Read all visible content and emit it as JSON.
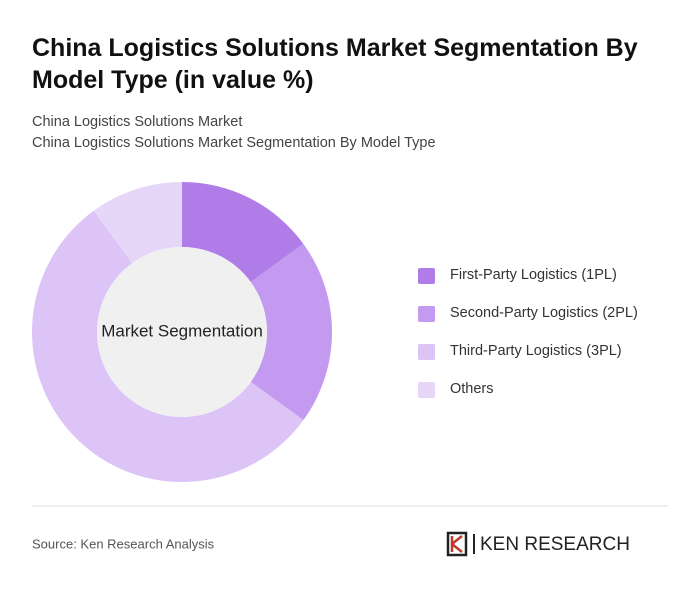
{
  "chart_data": {
    "type": "pie",
    "title": "China Logistics Solutions Market Segmentation By Model Type (in value %)",
    "subtitle": [
      "China Logistics Solutions Market",
      "China Logistics Solutions Market Segmentation By Model Type"
    ],
    "center_label": "Market Segmentation",
    "categories": [
      "First-Party Logistics (1PL)",
      "Second-Party Logistics (2PL)",
      "Third-Party Logistics (3PL)",
      "Others"
    ],
    "values": [
      15,
      20,
      55,
      10
    ],
    "colors": [
      "#b07de8",
      "#c49af0",
      "#dcc4f7",
      "#e6d6f8"
    ],
    "legend": "right",
    "source": "Source: Ken Research Analysis",
    "brand": "KEN RESEARCH"
  }
}
